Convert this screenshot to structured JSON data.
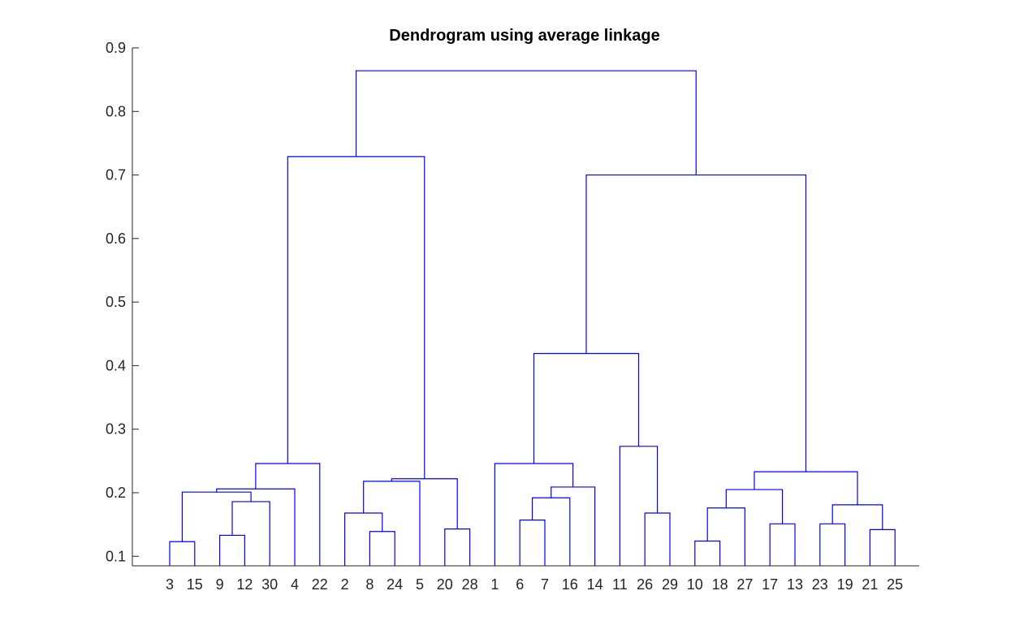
{
  "chart_data": {
    "type": "dendrogram",
    "title": "Dendrogram using average linkage",
    "xlabel": "",
    "ylabel": "",
    "ylim": [
      0.085,
      0.9
    ],
    "yticks": [
      0.1,
      0.2,
      0.3,
      0.4,
      0.5,
      0.6,
      0.7,
      0.8,
      0.9
    ],
    "ytick_labels": [
      "0.1",
      "0.2",
      "0.3",
      "0.4",
      "0.5",
      "0.6",
      "0.7",
      "0.8",
      "0.9"
    ],
    "leaf_order": [
      "3",
      "15",
      "9",
      "12",
      "30",
      "4",
      "22",
      "2",
      "8",
      "24",
      "5",
      "20",
      "28",
      "1",
      "6",
      "7",
      "16",
      "14",
      "11",
      "26",
      "29",
      "10",
      "18",
      "27",
      "17",
      "13",
      "23",
      "19",
      "21",
      "25"
    ],
    "merges": [
      {
        "left": "3",
        "right": "15",
        "height": 0.123,
        "id": "n1"
      },
      {
        "left": "9",
        "right": "12",
        "height": 0.133,
        "id": "n2"
      },
      {
        "left": "n2",
        "right": "30",
        "height": 0.186,
        "id": "n3"
      },
      {
        "left": "n1",
        "right": "n3",
        "height": 0.201,
        "id": "n4"
      },
      {
        "left": "n4",
        "right": "4",
        "height": 0.206,
        "id": "n5"
      },
      {
        "left": "n5",
        "right": "22",
        "height": 0.246,
        "id": "n6"
      },
      {
        "left": "8",
        "right": "24",
        "height": 0.139,
        "id": "n7"
      },
      {
        "left": "2",
        "right": "n7",
        "height": 0.168,
        "id": "n8"
      },
      {
        "left": "n8",
        "right": "5",
        "height": 0.218,
        "id": "n9"
      },
      {
        "left": "20",
        "right": "28",
        "height": 0.143,
        "id": "n10"
      },
      {
        "left": "n9",
        "right": "n10",
        "height": 0.222,
        "id": "n11"
      },
      {
        "left": "n6",
        "right": "n11",
        "height": 0.729,
        "id": "n12"
      },
      {
        "left": "6",
        "right": "7",
        "height": 0.157,
        "id": "n13"
      },
      {
        "left": "n13",
        "right": "16",
        "height": 0.192,
        "id": "n14"
      },
      {
        "left": "n14",
        "right": "14",
        "height": 0.209,
        "id": "n15"
      },
      {
        "left": "1",
        "right": "n15",
        "height": 0.246,
        "id": "n16"
      },
      {
        "left": "26",
        "right": "29",
        "height": 0.168,
        "id": "n17"
      },
      {
        "left": "11",
        "right": "n17",
        "height": 0.273,
        "id": "n18"
      },
      {
        "left": "n16",
        "right": "n18",
        "height": 0.419,
        "id": "n19"
      },
      {
        "left": "10",
        "right": "18",
        "height": 0.124,
        "id": "n20"
      },
      {
        "left": "n20",
        "right": "27",
        "height": 0.176,
        "id": "n21"
      },
      {
        "left": "17",
        "right": "13",
        "height": 0.151,
        "id": "n22"
      },
      {
        "left": "n21",
        "right": "n22",
        "height": 0.205,
        "id": "n23"
      },
      {
        "left": "23",
        "right": "19",
        "height": 0.151,
        "id": "n24"
      },
      {
        "left": "21",
        "right": "25",
        "height": 0.142,
        "id": "n25"
      },
      {
        "left": "n24",
        "right": "n25",
        "height": 0.181,
        "id": "n26"
      },
      {
        "left": "n23",
        "right": "n26",
        "height": 0.233,
        "id": "n27"
      },
      {
        "left": "n19",
        "right": "n27",
        "height": 0.7,
        "id": "n28"
      },
      {
        "left": "n12",
        "right": "n28",
        "height": 0.864,
        "id": "n29"
      }
    ],
    "grid": false,
    "colors": {
      "links": "#0000ff",
      "axes": "#262626"
    }
  }
}
